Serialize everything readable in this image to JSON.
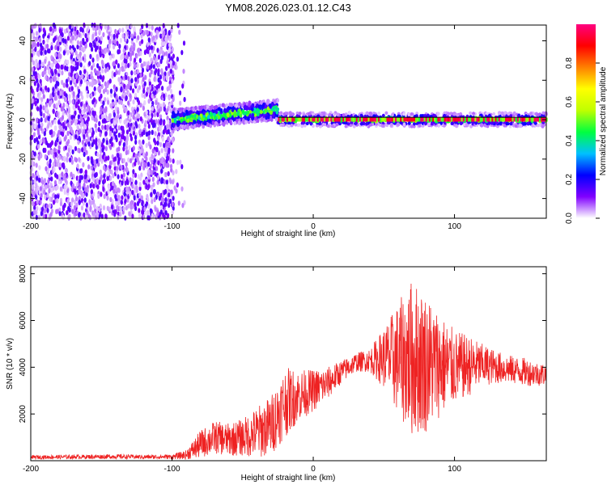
{
  "title": "YM08.2026.023.01.12.C43",
  "chart_data": [
    {
      "type": "heatmap",
      "xlabel": "Height of straight line (km)",
      "ylabel": "Frequency (Hz)",
      "xlim": [
        -200,
        165
      ],
      "ylim": [
        -50,
        48
      ],
      "xticks": [
        -200,
        -100,
        0,
        100
      ],
      "xtick_labels": [
        "-200",
        "-100",
        "0",
        "100"
      ],
      "yticks": [
        -40,
        -20,
        0,
        20,
        40
      ],
      "ytick_labels": [
        "-40",
        "-20",
        "0",
        "20",
        "40"
      ],
      "colorbar": {
        "label": "Normalized spectral amplitude",
        "range": [
          0,
          1
        ],
        "ticks": [
          0.0,
          0.2,
          0.4,
          0.6,
          0.8
        ],
        "tick_labels": [
          "0.0",
          "0.2",
          "0.4",
          "0.6",
          "0.8"
        ],
        "colormap": [
          "#ffffff",
          "#8000ff",
          "#0000ff",
          "#00c0ff",
          "#00ff40",
          "#c0ff00",
          "#ffff00",
          "#ff8000",
          "#ff0000",
          "#ff0080"
        ]
      },
      "regions": [
        {
          "x_range": [
            -200,
            -90
          ],
          "freq_range": [
            -50,
            48
          ],
          "amplitude": 0.1
        },
        {
          "x_range": [
            -100,
            -25
          ],
          "freq_range": [
            -6,
            10
          ],
          "amplitude": 0.4
        },
        {
          "x_range": [
            -25,
            165
          ],
          "freq_range": [
            -1,
            1
          ],
          "amplitude": 0.95
        }
      ]
    },
    {
      "type": "line",
      "xlabel": "Height of straight line (km)",
      "ylabel": "SNR (10 * v/v)",
      "xlim": [
        -200,
        165
      ],
      "ylim": [
        0,
        8300
      ],
      "xticks": [
        -200,
        -100,
        0,
        100
      ],
      "xtick_labels": [
        "-200",
        "-100",
        "0",
        "100"
      ],
      "yticks": [
        2000,
        4000,
        6000,
        8000
      ],
      "ytick_labels": [
        "2000",
        "4000",
        "6000",
        "8000"
      ],
      "series": [
        {
          "color": "#ee2222",
          "x": [
            -200,
            -180,
            -160,
            -140,
            -120,
            -100,
            -90,
            -80,
            -70,
            -60,
            -50,
            -40,
            -30,
            -20,
            -10,
            0,
            10,
            20,
            30,
            40,
            50,
            60,
            70,
            80,
            90,
            100,
            110,
            120,
            130,
            140,
            150,
            160,
            165
          ],
          "y": [
            150,
            160,
            170,
            180,
            160,
            170,
            250,
            700,
            1000,
            900,
            1000,
            1200,
            1500,
            2500,
            2800,
            3000,
            3300,
            3800,
            4200,
            4300,
            4400,
            4350,
            4400,
            4200,
            4100,
            4000,
            4050,
            4100,
            4000,
            3900,
            3800,
            3700,
            3700
          ],
          "spread": [
            80,
            90,
            90,
            100,
            90,
            100,
            200,
            600,
            700,
            700,
            800,
            1100,
            1300,
            1500,
            1100,
            900,
            700,
            500,
            400,
            500,
            1300,
            2400,
            3400,
            3000,
            2200,
            1600,
            1300,
            900,
            700,
            600,
            600,
            500,
            500
          ]
        }
      ]
    }
  ]
}
